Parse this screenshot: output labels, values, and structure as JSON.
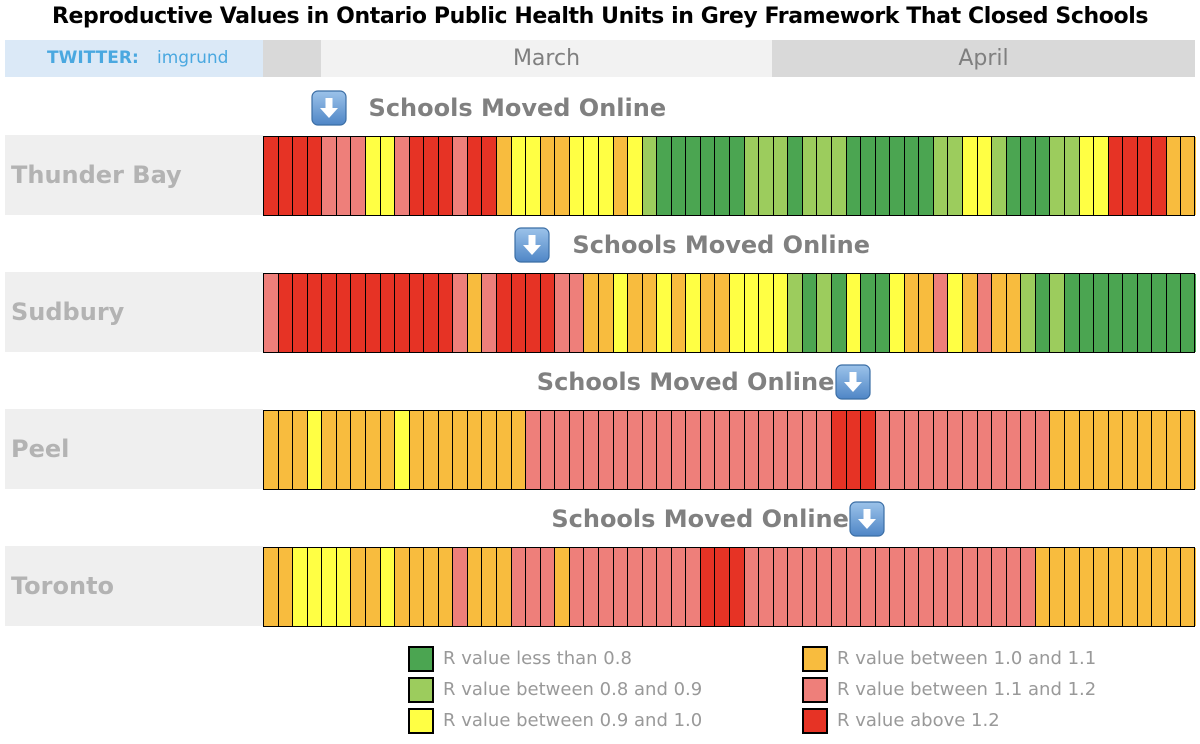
{
  "title": "Reproductive Values in Ontario Public Health Units in Grey Framework That Closed Schools",
  "twitter": {
    "label": "TWITTER:",
    "handle": "imgrund"
  },
  "months": [
    "March",
    "April"
  ],
  "annotation_text": "Schools Moved Online",
  "icon": "down-arrow-icon",
  "colors": {
    "1": "#4ba551",
    "2": "#9ccc5d",
    "3": "#ffff44",
    "4": "#f8bc3e",
    "5": "#ee7f7a",
    "6": "#e63325"
  },
  "chart_data": {
    "type": "heatmap",
    "title": "Reproductive Values in Ontario Public Health Units in Grey Framework That Closed Schools",
    "x": "days (March to April)",
    "category_codes": {
      "1": "R value less than 0.8",
      "2": "R value between 0.8 and 0.9",
      "3": "R value between 0.9 and 1.0",
      "4": "R value between 1.0 and 1.1",
      "5": "R value between 1.1 and 1.2",
      "6": "R value above 1.2"
    },
    "rows": [
      {
        "name": "Thunder Bay",
        "annotation": "Schools Moved Online",
        "school_close_day": 4,
        "values": [
          6,
          6,
          6,
          6,
          5,
          5,
          5,
          3,
          3,
          5,
          6,
          6,
          6,
          5,
          6,
          6,
          4,
          3,
          3,
          4,
          4,
          3,
          3,
          3,
          4,
          3,
          2,
          1,
          1,
          1,
          1,
          1,
          1,
          2,
          2,
          2,
          1,
          2,
          2,
          2,
          1,
          1,
          1,
          1,
          1,
          1,
          2,
          2,
          3,
          3,
          2,
          1,
          1,
          1,
          2,
          2,
          3,
          3,
          6,
          6,
          6,
          6,
          4,
          4
        ]
      },
      {
        "name": "Sudbury",
        "annotation": "Schools Moved Online",
        "school_close_day": 18,
        "values": [
          5,
          6,
          6,
          6,
          6,
          6,
          6,
          6,
          6,
          6,
          6,
          6,
          6,
          5,
          4,
          5,
          6,
          6,
          6,
          6,
          5,
          5,
          4,
          4,
          3,
          4,
          4,
          3,
          4,
          3,
          4,
          4,
          3,
          3,
          3,
          3,
          2,
          1,
          2,
          1,
          3,
          1,
          1,
          3,
          4,
          4,
          5,
          3,
          4,
          5,
          4,
          4,
          2,
          1,
          2,
          1,
          1,
          1,
          1,
          1,
          1,
          1,
          1,
          1
        ]
      },
      {
        "name": "Peel",
        "annotation": "Schools Moved Online",
        "school_close_day": 40,
        "values": [
          4,
          4,
          4,
          3,
          4,
          4,
          4,
          4,
          4,
          3,
          4,
          4,
          4,
          4,
          4,
          4,
          4,
          4,
          5,
          5,
          5,
          5,
          5,
          5,
          5,
          5,
          5,
          5,
          5,
          5,
          5,
          5,
          5,
          5,
          5,
          5,
          5,
          5,
          5,
          6,
          6,
          6,
          5,
          5,
          5,
          5,
          5,
          5,
          5,
          5,
          5,
          5,
          5,
          5,
          4,
          4,
          4,
          4,
          4,
          4,
          4,
          4,
          4,
          4
        ]
      },
      {
        "name": "Toronto",
        "annotation": "Schools Moved Online",
        "school_close_day": 41,
        "values": [
          4,
          4,
          3,
          3,
          3,
          3,
          4,
          4,
          3,
          4,
          4,
          4,
          4,
          5,
          4,
          4,
          4,
          5,
          5,
          5,
          4,
          5,
          5,
          5,
          5,
          5,
          5,
          5,
          5,
          5,
          6,
          6,
          6,
          5,
          5,
          5,
          5,
          5,
          5,
          5,
          5,
          5,
          5,
          5,
          5,
          5,
          5,
          5,
          5,
          5,
          5,
          5,
          5,
          4,
          4,
          4,
          4,
          4,
          4,
          4,
          4,
          4,
          4,
          4
        ]
      }
    ],
    "legend": [
      {
        "code": "1",
        "label": "R value less than 0.8"
      },
      {
        "code": "2",
        "label": "R value between 0.8 and 0.9"
      },
      {
        "code": "3",
        "label": "R value between 0.9 and 1.0"
      },
      {
        "code": "4",
        "label": "R value between 1.0 and 1.1"
      },
      {
        "code": "5",
        "label": "R value between 1.1 and 1.2"
      },
      {
        "code": "6",
        "label": "R value above 1.2"
      }
    ]
  }
}
